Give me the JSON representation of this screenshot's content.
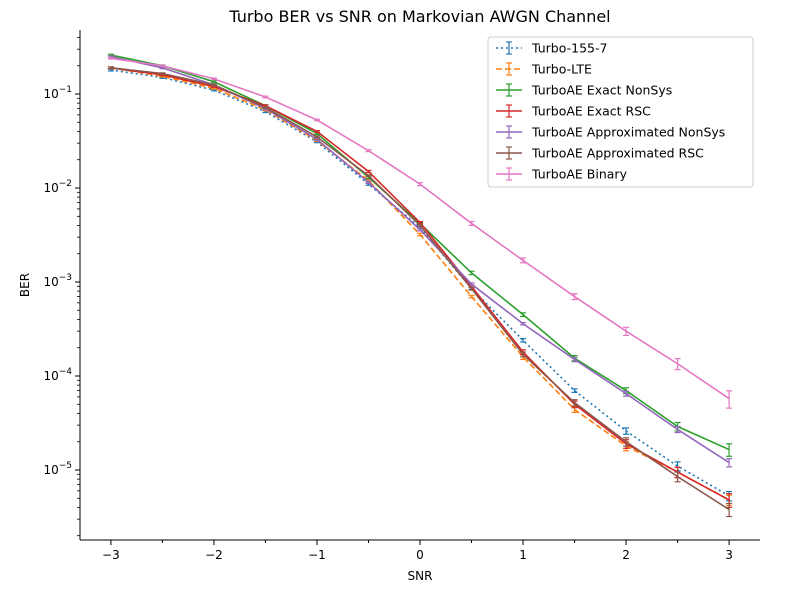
{
  "chart_data": {
    "type": "line",
    "title": "Turbo BER vs SNR on Markovian AWGN Channel",
    "xlabel": "SNR",
    "ylabel": "BER",
    "y_scale": "log",
    "xlim": [
      -3.3,
      3.3
    ],
    "ylim": [
      1.8e-06,
      0.48
    ],
    "x_ticks": [
      "−3",
      "−2",
      "−1",
      "0",
      "1",
      "2",
      "3"
    ],
    "y_ticks": [
      {
        "base": "10",
        "exp": "−5",
        "value": 1e-05
      },
      {
        "base": "10",
        "exp": "−4",
        "value": 0.0001
      },
      {
        "base": "10",
        "exp": "−3",
        "value": 0.001
      },
      {
        "base": "10",
        "exp": "−2",
        "value": 0.01
      },
      {
        "base": "10",
        "exp": "−1",
        "value": 0.1
      }
    ],
    "grid": false,
    "legend_position": "top-right",
    "x": [
      -3,
      -2.5,
      -2,
      -1.5,
      -1,
      -0.5,
      0,
      0.5,
      1,
      1.5,
      2,
      2.5,
      3
    ],
    "series": [
      {
        "name": "Turbo-155-7",
        "color": "#1f77b4",
        "dash": "dotted",
        "values": [
          0.18,
          0.15,
          0.11,
          0.065,
          0.031,
          0.011,
          0.0038,
          0.00085,
          0.00024,
          7e-05,
          2.6e-05,
          1.1e-05,
          5.3e-06
        ],
        "errors": [
          0.004,
          0.003,
          0.002,
          0.0015,
          0.0006,
          0.0003,
          0.0001,
          2e-05,
          1e-05,
          3e-06,
          2e-06,
          1.2e-06,
          6e-07
        ]
      },
      {
        "name": "Turbo-LTE",
        "color": "#ff7f0e",
        "dash": "dashed",
        "values": [
          0.19,
          0.155,
          0.115,
          0.068,
          0.032,
          0.012,
          0.0032,
          0.0007,
          0.00016,
          4.4e-05,
          1.8e-05,
          9.5e-06,
          4.8e-06
        ],
        "errors": [
          0.004,
          0.003,
          0.002,
          0.0015,
          0.0006,
          0.0003,
          0.0001,
          2e-05,
          1e-05,
          3e-06,
          2e-06,
          1.2e-06,
          6e-07
        ]
      },
      {
        "name": "TurboAE Exact NonSys",
        "color": "#2ca02c",
        "dash": "solid",
        "values": [
          0.26,
          0.2,
          0.135,
          0.075,
          0.038,
          0.013,
          0.0042,
          0.00125,
          0.00045,
          0.000155,
          7e-05,
          2.9e-05,
          1.65e-05
        ],
        "errors": [
          0.005,
          0.004,
          0.003,
          0.002,
          0.001,
          0.0004,
          0.0001,
          5e-05,
          2e-05,
          1e-05,
          5e-06,
          3e-06,
          2.5e-06
        ]
      },
      {
        "name": "TurboAE Exact RSC",
        "color": "#d62728",
        "dash": "solid",
        "values": [
          0.19,
          0.16,
          0.12,
          0.075,
          0.04,
          0.015,
          0.0043,
          0.0009,
          0.00018,
          5e-05,
          1.9e-05,
          9.5e-06,
          4.8e-06
        ],
        "errors": [
          0.004,
          0.003,
          0.002,
          0.0015,
          0.0008,
          0.0004,
          0.0001,
          3e-05,
          1e-05,
          4e-06,
          2e-06,
          1.2e-06,
          8e-07
        ]
      },
      {
        "name": "TurboAE Approximated NonSys",
        "color": "#9467bd",
        "dash": "solid",
        "values": [
          0.25,
          0.19,
          0.125,
          0.07,
          0.033,
          0.0115,
          0.0036,
          0.00095,
          0.00036,
          0.00015,
          6.5e-05,
          2.7e-05,
          1.2e-05
        ],
        "errors": [
          0.005,
          0.004,
          0.003,
          0.002,
          0.0008,
          0.0003,
          0.0001,
          3e-05,
          1e-05,
          8e-06,
          4e-06,
          2e-06,
          1.2e-06
        ]
      },
      {
        "name": "TurboAE Approximated RSC",
        "color": "#8c564b",
        "dash": "solid",
        "values": [
          0.19,
          0.165,
          0.125,
          0.072,
          0.035,
          0.0135,
          0.004,
          0.00085,
          0.00017,
          5.2e-05,
          2e-05,
          8.5e-06,
          3.8e-06
        ],
        "errors": [
          0.004,
          0.003,
          0.002,
          0.0015,
          0.0007,
          0.0003,
          0.0001,
          3e-05,
          1e-05,
          4e-06,
          2e-06,
          1e-06,
          6e-07
        ]
      },
      {
        "name": "TurboAE Binary",
        "color": "#e377c2",
        "dash": "solid",
        "values": [
          0.24,
          0.2,
          0.145,
          0.093,
          0.053,
          0.025,
          0.011,
          0.0042,
          0.0017,
          0.0007,
          0.0003,
          0.000135,
          5.75e-05
        ],
        "errors": [
          0.004,
          0.003,
          0.003,
          0.002,
          0.001,
          0.0006,
          0.0004,
          0.0002,
          0.0001,
          5e-05,
          3e-05,
          1.8e-05,
          1.2e-05
        ]
      }
    ]
  }
}
